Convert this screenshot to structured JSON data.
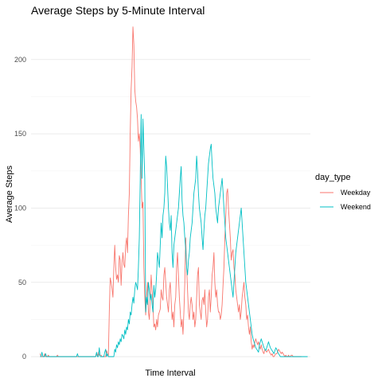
{
  "chart_data": {
    "type": "line",
    "title": "Average Steps by 5-Minute Interval",
    "xlabel": "Time Interval",
    "ylabel": "Average Steps",
    "ylim": [
      -1,
      224
    ],
    "yticks": [
      0,
      50,
      100,
      150,
      200
    ],
    "xlim": [
      -10,
      297
    ],
    "x": "interval index 0-287 (5-minute intervals, tick labels not shown)",
    "grid": true,
    "legend": {
      "title": "day_type",
      "position": "right"
    },
    "series": [
      {
        "name": "Weekday",
        "color": "#F8766D",
        "values": [
          2,
          0,
          0,
          0,
          0,
          2,
          0,
          0,
          0,
          1,
          0,
          0,
          0,
          0,
          0,
          0,
          0,
          0,
          0,
          1,
          0,
          0,
          0,
          0,
          0,
          0,
          0,
          0,
          0,
          0,
          0,
          0,
          0,
          0,
          0,
          0,
          0,
          0,
          0,
          0,
          0,
          0,
          0,
          0,
          0,
          0,
          0,
          0,
          0,
          0,
          0,
          0,
          0,
          0,
          0,
          0,
          0,
          0,
          0,
          0,
          0,
          0,
          2,
          0,
          3,
          1,
          1,
          1,
          0,
          0,
          0,
          0,
          0,
          4,
          2,
          0,
          30,
          53,
          50,
          46,
          40,
          60,
          75,
          60,
          52,
          55,
          50,
          68,
          65,
          48,
          63,
          70,
          62,
          60,
          75,
          80,
          70,
          95,
          110,
          150,
          180,
          195,
          222,
          210,
          180,
          172,
          168,
          160,
          145,
          150,
          140,
          120,
          100,
          104,
          60,
          40,
          28,
          40,
          50,
          30,
          25,
          40,
          55,
          45,
          35,
          20,
          22,
          18,
          25,
          20,
          28,
          30,
          32,
          45,
          40,
          38,
          55,
          60,
          50,
          40,
          35,
          30,
          45,
          50,
          38,
          25,
          30,
          20,
          35,
          40,
          60,
          70,
          55,
          40,
          30,
          20,
          25,
          15,
          30,
          50,
          80,
          60,
          45,
          30,
          25,
          35,
          40,
          35,
          25,
          30,
          20,
          25,
          40,
          55,
          60,
          35,
          30,
          25,
          38,
          40,
          35,
          45,
          30,
          20,
          25,
          40,
          45,
          30,
          40,
          55,
          60,
          70,
          50,
          40,
          45,
          35,
          30,
          30,
          25,
          28,
          35,
          48,
          60,
          80,
          95,
          110,
          113,
          100,
          90,
          80,
          65,
          70,
          72,
          60,
          55,
          45,
          40,
          35,
          30,
          35,
          25,
          30,
          40,
          45,
          50,
          40,
          35,
          25,
          28,
          20,
          15,
          20,
          10,
          5,
          8,
          6,
          10,
          12,
          10,
          8,
          10,
          7,
          5,
          8,
          5,
          3,
          2,
          5,
          4,
          3,
          4,
          5,
          3,
          2,
          1,
          2,
          0,
          0,
          1,
          2,
          2,
          3,
          5,
          4,
          3,
          2,
          3,
          2,
          1,
          0,
          1,
          0,
          0,
          1,
          0,
          0,
          1,
          1,
          0,
          0,
          0,
          0,
          0,
          0,
          0,
          0,
          0,
          0
        ]
      },
      {
        "name": "Weekend",
        "color": "#00BFC4",
        "values": [
          0,
          0,
          3,
          0,
          0,
          0,
          2,
          0,
          0,
          0,
          0,
          0,
          0,
          0,
          0,
          0,
          0,
          0,
          0,
          0,
          0,
          0,
          0,
          0,
          0,
          0,
          0,
          0,
          0,
          0,
          0,
          0,
          0,
          0,
          0,
          0,
          0,
          0,
          0,
          0,
          0,
          2,
          0,
          0,
          0,
          0,
          0,
          0,
          0,
          0,
          0,
          0,
          0,
          0,
          0,
          0,
          0,
          0,
          0,
          0,
          0,
          0,
          3,
          0,
          0,
          6,
          0,
          0,
          0,
          0,
          0,
          3,
          5,
          0,
          2,
          0,
          0,
          0,
          0,
          0,
          0,
          0,
          5,
          3,
          8,
          6,
          10,
          8,
          12,
          10,
          15,
          14,
          12,
          18,
          15,
          20,
          18,
          25,
          22,
          30,
          28,
          35,
          40,
          36,
          45,
          50,
          48,
          45,
          60,
          80,
          120,
          163,
          120,
          160,
          140,
          120,
          30,
          40,
          35,
          50,
          45,
          38,
          42,
          35,
          30,
          48,
          40,
          45,
          55,
          70,
          65,
          60,
          75,
          90,
          80,
          95,
          100,
          110,
          135,
          128,
          115,
          100,
          90,
          85,
          95,
          70,
          60,
          75,
          80,
          85,
          90,
          95,
          100,
          110,
          120,
          128,
          105,
          95,
          90,
          80,
          72,
          60,
          55,
          65,
          70,
          80,
          85,
          90,
          100,
          110,
          115,
          120,
          135,
          125,
          110,
          100,
          95,
          90,
          80,
          72,
          85,
          95,
          100,
          110,
          120,
          130,
          135,
          140,
          143,
          130,
          120,
          115,
          110,
          100,
          95,
          90,
          100,
          105,
          110,
          115,
          120,
          111,
          100,
          90,
          80,
          75,
          70,
          65,
          60,
          55,
          50,
          45,
          40,
          50,
          60,
          70,
          75,
          80,
          85,
          90,
          95,
          100,
          90,
          80,
          70,
          60,
          50,
          45,
          40,
          35,
          30,
          25,
          20,
          15,
          12,
          10,
          8,
          6,
          5,
          4,
          3,
          8,
          10,
          12,
          10,
          8,
          6,
          5,
          4,
          6,
          8,
          10,
          8,
          6,
          5,
          4,
          3,
          2,
          4,
          6,
          5,
          3,
          2,
          1,
          0,
          0,
          0,
          0,
          0,
          0,
          0,
          0,
          0,
          0,
          0,
          0,
          0,
          0,
          0,
          0,
          0,
          0,
          0,
          0,
          0,
          0,
          0,
          0,
          0,
          0,
          0,
          0,
          0,
          0,
          0
        ]
      }
    ]
  }
}
